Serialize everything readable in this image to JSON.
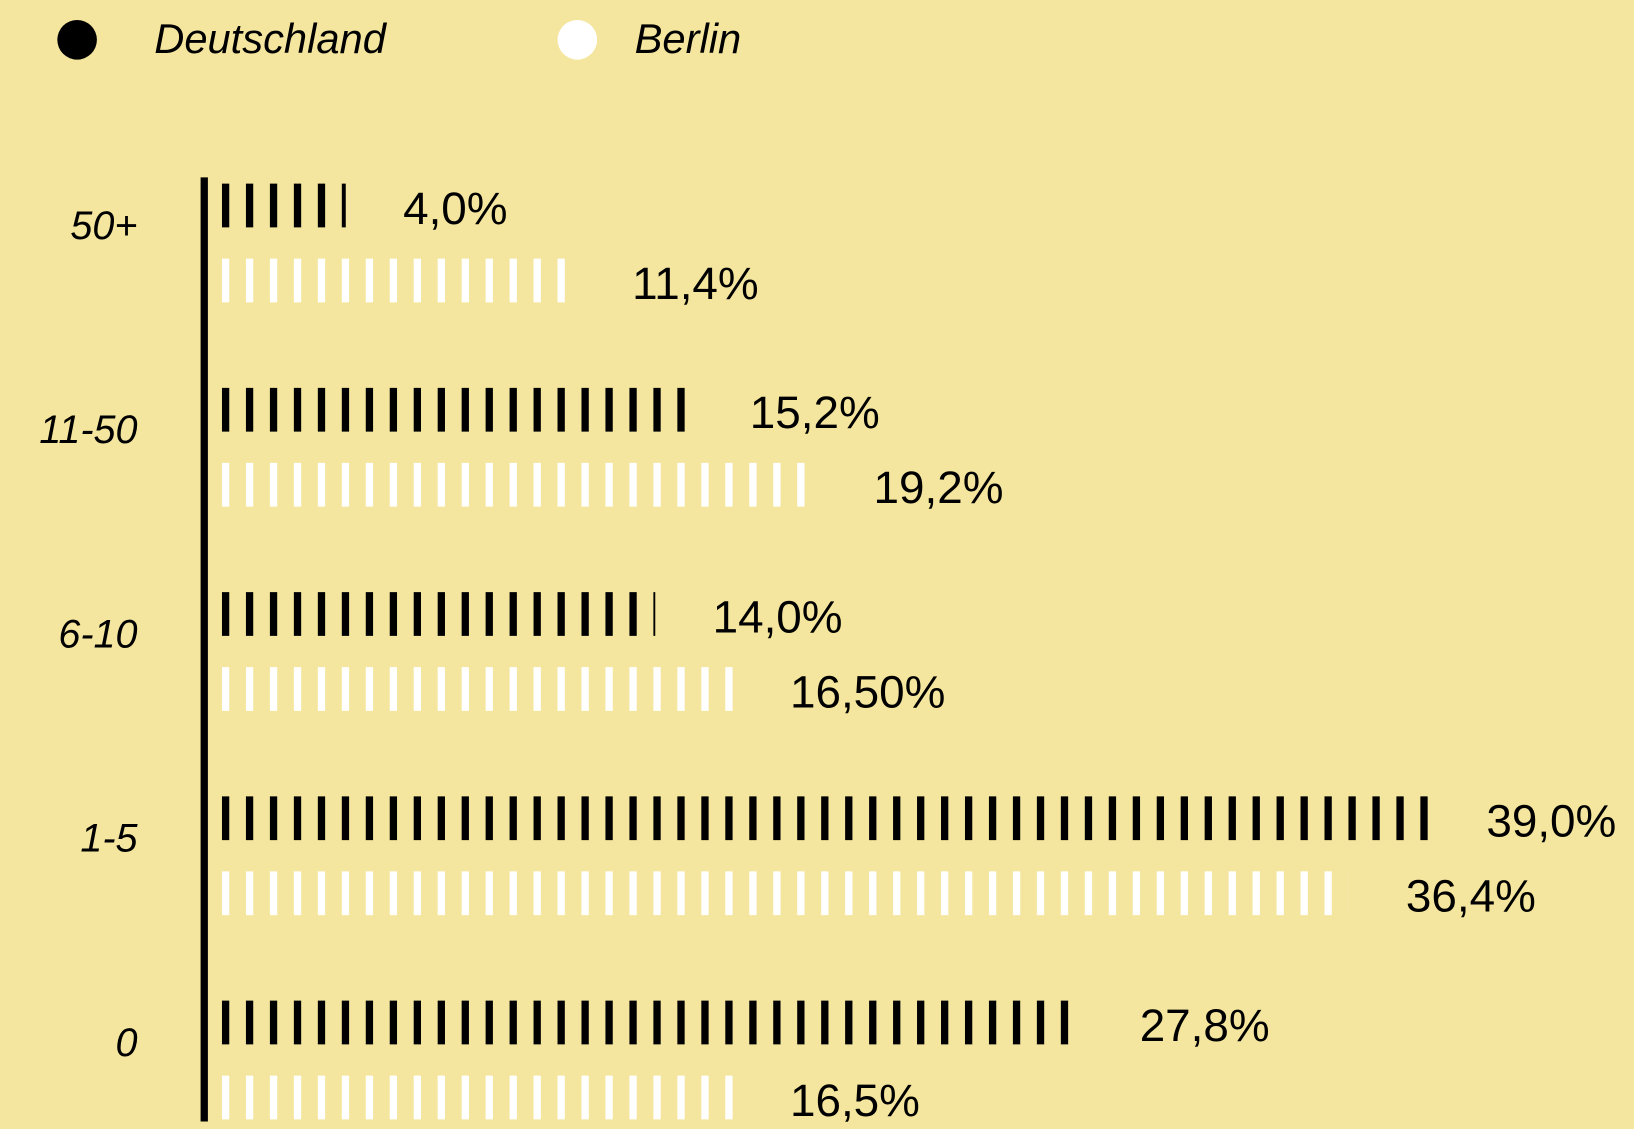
{
  "chart_data": {
    "type": "bar",
    "categories": [
      "50+",
      "11-50",
      "6-10",
      "1-5",
      "0"
    ],
    "series": [
      {
        "name": "Deutschland",
        "color": "#000000",
        "values": [
          4.0,
          15.2,
          14.0,
          39.0,
          27.8
        ],
        "value_labels": [
          "4,0%",
          "15,2%",
          "14,0%",
          "39,0%",
          "27,8%"
        ]
      },
      {
        "name": "Berlin",
        "color": "#ffffff",
        "values": [
          11.4,
          19.2,
          16.5,
          36.4,
          16.5
        ],
        "value_labels": [
          "11,4%",
          "19,2%",
          "16,50%",
          "36,4%",
          "16,5%"
        ]
      }
    ]
  }
}
